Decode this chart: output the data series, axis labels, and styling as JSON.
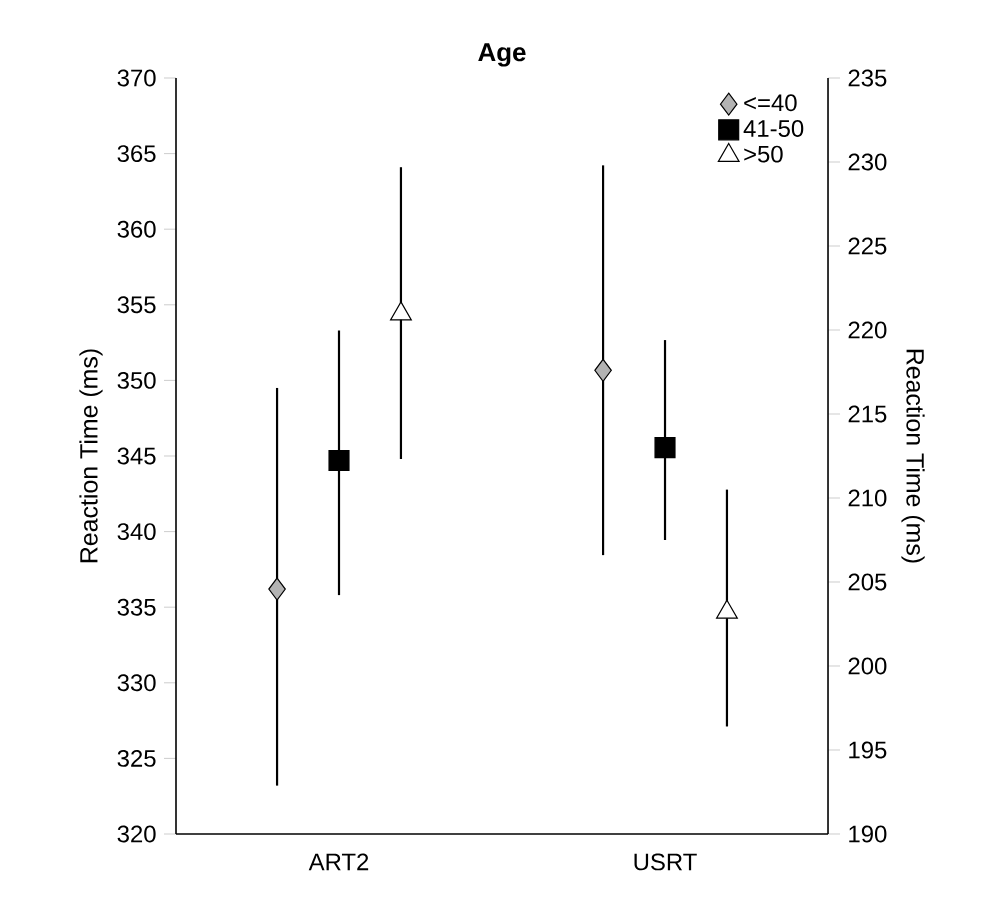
{
  "chart_data": {
    "type": "scatter",
    "title": "Age",
    "categories": [
      "ART2",
      "USRT"
    ],
    "ylabel": "Reaction Time (ms)",
    "y2label": "Reaction Time (ms)",
    "ylim": [
      320,
      370
    ],
    "yticks": [
      320,
      325,
      330,
      335,
      340,
      345,
      350,
      355,
      360,
      365,
      370
    ],
    "y2lim": [
      190,
      235
    ],
    "y2ticks": [
      190,
      195,
      200,
      205,
      210,
      215,
      220,
      225,
      230,
      235
    ],
    "legend": "top right",
    "series": [
      {
        "name": "<=40",
        "color": "#b3b3b3",
        "marker": "diamond",
        "values": [
          336.2,
          null
        ],
        "errors": [
          [
            323.2,
            349.5
          ],
          null
        ]
      },
      {
        "name": "41-50",
        "color": "#000000",
        "marker": "square",
        "values": [
          344.7,
          null
        ],
        "errors": [
          [
            335.8,
            353.3
          ],
          null
        ]
      },
      {
        "name": ">50",
        "color": "#ffffff",
        "marker": "triangle",
        "values": [
          354.4,
          null
        ],
        "errors": [
          [
            344.8,
            364.1
          ],
          null
        ]
      },
      {
        "color": "#b3b3b3",
        "marker": "diamond",
        "axis": "y2",
        "values": [
          null,
          217.6
        ],
        "errors": [
          null,
          [
            206.6,
            229.8
          ]
        ]
      },
      {
        "color": "#000000",
        "marker": "square",
        "axis": "y2",
        "values": [
          null,
          213.0
        ],
        "errors": [
          null,
          [
            207.5,
            219.4
          ]
        ]
      },
      {
        "color": "#ffffff",
        "marker": "triangle",
        "axis": "y2",
        "values": [
          null,
          203.2
        ],
        "errors": [
          null,
          [
            196.4,
            210.5
          ]
        ]
      }
    ]
  }
}
